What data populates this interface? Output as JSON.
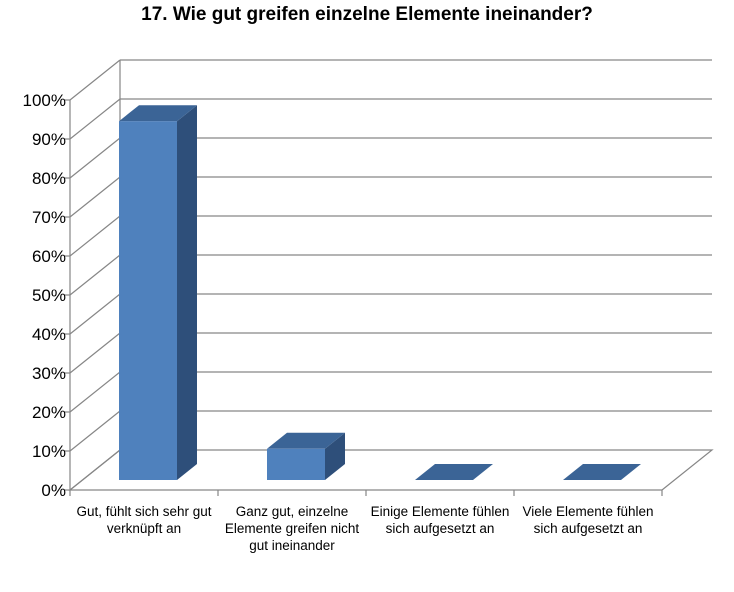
{
  "chart_data": {
    "type": "bar",
    "style": "3d-column",
    "title": "17. Wie gut greifen einzelne Elemente ineinander?",
    "categories": [
      "Gut, fühlt sich sehr gut verknüpft an",
      "Ganz gut, einzelne Elemente greifen nicht gut ineinander",
      "Einige Elemente fühlen sich aufgesetzt an",
      "Viele Elemente fühlen sich aufgesetzt an"
    ],
    "values": [
      0.92,
      0.08,
      0.0,
      0.0
    ],
    "ylim": [
      0,
      1
    ],
    "yticks": [
      0,
      0.1,
      0.2,
      0.3,
      0.4,
      0.5,
      0.6,
      0.7,
      0.8,
      0.9,
      1.0
    ],
    "ytick_labels": [
      "0%",
      "10%",
      "20%",
      "30%",
      "40%",
      "50%",
      "60%",
      "70%",
      "80%",
      "90%",
      "100%"
    ],
    "xlabel": "",
    "ylabel": "",
    "grid": true,
    "legend": "none",
    "colors": {
      "bar_front": "#4F81BD",
      "bar_side": "#2E4F7A",
      "bar_top": "#3B6496",
      "grid": "#868686",
      "axis": "#868686"
    }
  }
}
